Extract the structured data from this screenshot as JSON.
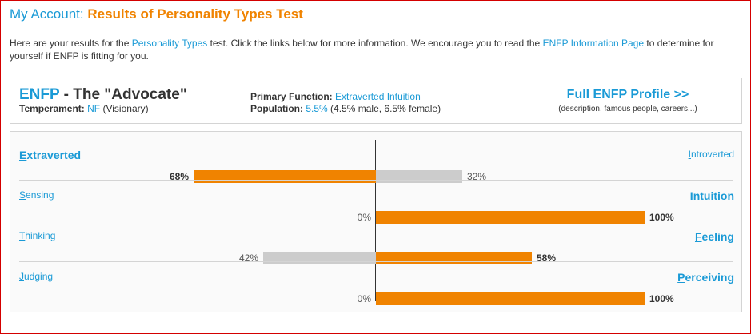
{
  "heading": {
    "prefix": "My Account:",
    "title": "Results of Personality Types Test"
  },
  "intro": {
    "t1": "Here are your results for the ",
    "link1": "Personality Types",
    "t2": " test. Click the links below for more information. We encourage you to read the ",
    "link2": "ENFP Information Page",
    "t3": " to determine for yourself if ENFP is fitting for you."
  },
  "summary": {
    "type_code": "ENFP",
    "type_sep": " - ",
    "type_nickname": "The \"Advocate\"",
    "temperament_label": "Temperament:",
    "temperament_code": "NF",
    "temperament_desc": "(Visionary)",
    "primary_label": "Primary Function:",
    "primary_value": "Extraverted Intuition",
    "population_label": "Population:",
    "population_value": "5.5%",
    "population_detail": "(4.5% male, 6.5% female)",
    "profile_link": "Full ENFP Profile >>",
    "profile_sub": "(description, famous people, careers...)"
  },
  "dimensions": [
    {
      "left_first": "E",
      "left_rest": "xtraverted",
      "right_first": "I",
      "right_rest": "ntroverted",
      "left_pct": 68,
      "right_pct": 32,
      "left_pct_label": "68%",
      "right_pct_label": "32%",
      "dominant": "left"
    },
    {
      "left_first": "S",
      "left_rest": "ensing",
      "right_first": "I",
      "right_rest": "ntuition",
      "left_pct": 0,
      "right_pct": 100,
      "left_pct_label": "0%",
      "right_pct_label": "100%",
      "dominant": "right"
    },
    {
      "left_first": "T",
      "left_rest": "hinking",
      "right_first": "F",
      "right_rest": "eeling",
      "left_pct": 42,
      "right_pct": 58,
      "left_pct_label": "42%",
      "right_pct_label": "58%",
      "dominant": "right"
    },
    {
      "left_first": "J",
      "left_rest": "udging",
      "right_first": "P",
      "right_rest": "erceiving",
      "left_pct": 0,
      "right_pct": 100,
      "left_pct_label": "0%",
      "right_pct_label": "100%",
      "dominant": "right"
    }
  ],
  "colors": {
    "accent_blue": "#1a9ad6",
    "accent_orange": "#f08300",
    "bar_grey": "#cccccc",
    "frame_red": "#d40000"
  }
}
